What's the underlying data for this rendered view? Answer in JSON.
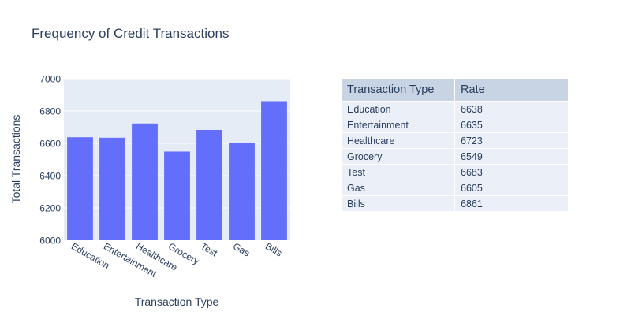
{
  "colors": {
    "bar": "#636efa",
    "plot_bg": "#e5ecf6",
    "grid": "#ffffff",
    "text": "#2a3f5f",
    "table_header_bg": "#c8d4e3",
    "table_cell_bg": "#ebf0f8"
  },
  "chart_data": [
    {
      "type": "bar",
      "title": "Frequency of Credit Transactions",
      "xlabel": "Transaction Type",
      "ylabel": "Total Transactions",
      "categories": [
        "Education",
        "Entertainment",
        "Healthcare",
        "Grocery",
        "Test",
        "Gas",
        "Bills"
      ],
      "values": [
        6638,
        6635,
        6723,
        6549,
        6683,
        6605,
        6861
      ],
      "ylim": [
        6000,
        7000
      ],
      "yticks": [
        6000,
        6200,
        6400,
        6600,
        6800,
        7000
      ],
      "grid": true
    },
    {
      "type": "table",
      "columns": [
        "Transaction Type",
        "Rate"
      ],
      "rows": [
        [
          "Education",
          "6638"
        ],
        [
          "Entertainment",
          "6635"
        ],
        [
          "Healthcare",
          "6723"
        ],
        [
          "Grocery",
          "6549"
        ],
        [
          "Test",
          "6683"
        ],
        [
          "Gas",
          "6605"
        ],
        [
          "Bills",
          "6861"
        ]
      ]
    }
  ]
}
